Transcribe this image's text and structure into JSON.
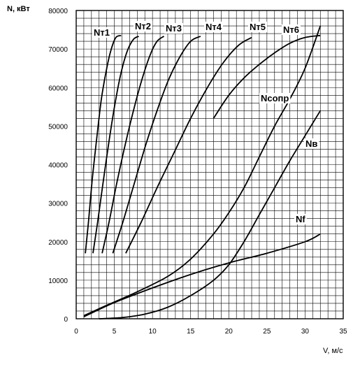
{
  "chart_data": {
    "type": "line",
    "title": "",
    "ylabel": "N, кВт",
    "xlabel": "V, м/с",
    "xlim": [
      0,
      35
    ],
    "ylim": [
      0,
      80000
    ],
    "x_ticks": [
      0,
      5,
      10,
      15,
      20,
      25,
      30,
      35
    ],
    "x_tick_labels": [
      "0",
      "5",
      "10",
      "15",
      "20",
      "25",
      "30",
      "35"
    ],
    "y_ticks": [
      0,
      10000,
      20000,
      30000,
      40000,
      50000,
      60000,
      70000,
      80000
    ],
    "y_tick_labels": [
      "0",
      "10000",
      "20000",
      "30000",
      "40000",
      "50000",
      "60000",
      "70000",
      "80000"
    ],
    "grid": true,
    "x_minor_grid_step": 1,
    "y_minor_grid_step": 2000,
    "legend": "none",
    "line_color": "#000000",
    "series": [
      {
        "name": "Nт1",
        "points": [
          [
            1.2,
            17000
          ],
          [
            1.6,
            25000
          ],
          [
            2.1,
            36000
          ],
          [
            2.7,
            47000
          ],
          [
            3.3,
            57000
          ],
          [
            4.0,
            65000
          ],
          [
            4.6,
            70000
          ],
          [
            5.2,
            73000
          ],
          [
            5.9,
            73500
          ]
        ]
      },
      {
        "name": "Nт2",
        "points": [
          [
            2.2,
            17000
          ],
          [
            2.8,
            25000
          ],
          [
            3.5,
            35000
          ],
          [
            4.3,
            46000
          ],
          [
            5.1,
            56000
          ],
          [
            5.9,
            64000
          ],
          [
            6.7,
            69500
          ],
          [
            7.5,
            72500
          ],
          [
            8.2,
            73300
          ]
        ]
      },
      {
        "name": "Nт3",
        "points": [
          [
            3.4,
            17000
          ],
          [
            4.3,
            25000
          ],
          [
            5.3,
            35000
          ],
          [
            6.4,
            45000
          ],
          [
            7.5,
            54000
          ],
          [
            8.6,
            62000
          ],
          [
            9.7,
            68500
          ],
          [
            10.6,
            72000
          ],
          [
            11.5,
            73300
          ]
        ]
      },
      {
        "name": "Nт4",
        "points": [
          [
            4.8,
            17000
          ],
          [
            6.1,
            25000
          ],
          [
            7.6,
            35000
          ],
          [
            9.1,
            45000
          ],
          [
            10.6,
            54000
          ],
          [
            12.1,
            62000
          ],
          [
            13.6,
            68000
          ],
          [
            15.0,
            72000
          ],
          [
            16.3,
            73300
          ]
        ]
      },
      {
        "name": "Nт5",
        "points": [
          [
            6.5,
            17000
          ],
          [
            8.5,
            25000
          ],
          [
            10.6,
            34000
          ],
          [
            12.8,
            43000
          ],
          [
            15.0,
            52000
          ],
          [
            17.2,
            60000
          ],
          [
            19.3,
            66500
          ],
          [
            21.3,
            71000
          ],
          [
            23.0,
            73000
          ]
        ]
      },
      {
        "name": "Nт6",
        "points": [
          [
            18.0,
            52000
          ],
          [
            20.0,
            58000
          ],
          [
            22.0,
            62500
          ],
          [
            24.0,
            66000
          ],
          [
            26.0,
            69000
          ],
          [
            28.0,
            71500
          ],
          [
            30.0,
            73000
          ],
          [
            32.0,
            73500
          ]
        ]
      },
      {
        "name": "Nсопр",
        "points": [
          [
            1,
            800
          ],
          [
            4,
            3500
          ],
          [
            8,
            7000
          ],
          [
            12,
            11000
          ],
          [
            15,
            15500
          ],
          [
            18,
            22000
          ],
          [
            20,
            27500
          ],
          [
            22,
            34000
          ],
          [
            24,
            42000
          ],
          [
            26,
            50000
          ],
          [
            28,
            57000
          ],
          [
            30,
            65000
          ],
          [
            32,
            76000
          ]
        ]
      },
      {
        "name": "Nв",
        "points": [
          [
            3,
            0
          ],
          [
            6,
            300
          ],
          [
            9,
            1200
          ],
          [
            12,
            3000
          ],
          [
            15,
            6000
          ],
          [
            18,
            10000
          ],
          [
            20,
            14000
          ],
          [
            22,
            20000
          ],
          [
            24,
            27000
          ],
          [
            26,
            34000
          ],
          [
            28,
            41000
          ],
          [
            30,
            47500
          ],
          [
            32,
            54000
          ]
        ]
      },
      {
        "name": "Nf",
        "points": [
          [
            1,
            500
          ],
          [
            5,
            4200
          ],
          [
            10,
            8000
          ],
          [
            15,
            11500
          ],
          [
            20,
            14500
          ],
          [
            25,
            17000
          ],
          [
            30,
            20000
          ],
          [
            32,
            22000
          ]
        ]
      }
    ]
  }
}
